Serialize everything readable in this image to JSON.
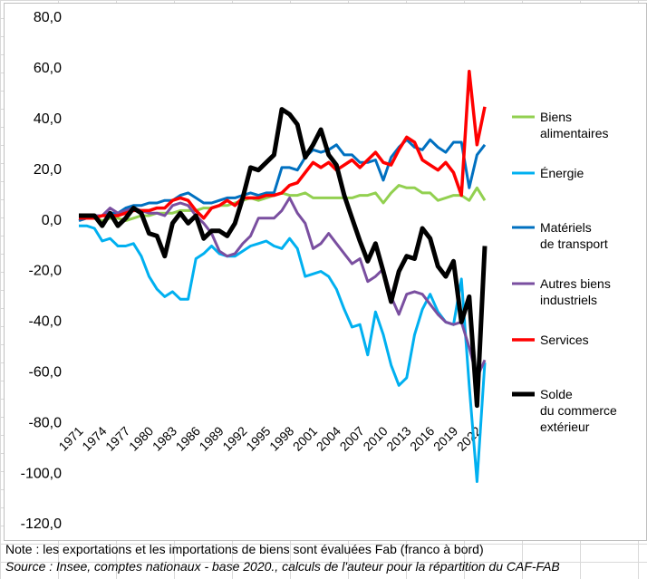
{
  "chart_data": {
    "type": "line",
    "categories": [
      "1971",
      null,
      null,
      "1974",
      null,
      null,
      "1977",
      null,
      null,
      "1980",
      null,
      null,
      "1983",
      null,
      null,
      "1986",
      null,
      null,
      "1989",
      null,
      null,
      "1992",
      null,
      null,
      "1995",
      null,
      null,
      "1998",
      null,
      null,
      "2001",
      null,
      null,
      "2004",
      null,
      null,
      "2007",
      null,
      null,
      "2010",
      null,
      null,
      "2013",
      null,
      null,
      "2016",
      null,
      null,
      "2019",
      null,
      null,
      "2022",
      null
    ],
    "series": [
      {
        "name": "Biens\nalimentaires",
        "color": "#92d050",
        "width": 3,
        "values": [
          1,
          1,
          1,
          0,
          1,
          1,
          0,
          1,
          2,
          2,
          3,
          3,
          3,
          4,
          4,
          4,
          5,
          5,
          6,
          6,
          7,
          8,
          9,
          8,
          9,
          10,
          11,
          10,
          10,
          11,
          9,
          9,
          9,
          9,
          9,
          9,
          10,
          10,
          11,
          7,
          11,
          14,
          13,
          13,
          11,
          11,
          8,
          9,
          10,
          10,
          8,
          13,
          8
        ]
      },
      {
        "name": "Énergie",
        "color": "#00b0f0",
        "width": 3,
        "values": [
          -2,
          -2,
          -3,
          -8,
          -7,
          -10,
          -10,
          -9,
          -14,
          -22,
          -27,
          -30,
          -28,
          -31,
          -31,
          -15,
          -13,
          -10,
          -13,
          -14,
          -14,
          -12,
          -10,
          -9,
          -8,
          -10,
          -11,
          -7,
          -11,
          -22,
          -21,
          -20,
          -22,
          -27,
          -35,
          -42,
          -41,
          -53,
          -36,
          -45,
          -57,
          -65,
          -62,
          -45,
          -35,
          -29,
          -36,
          -40,
          -41,
          -23,
          -65,
          -103,
          -56
        ]
      },
      {
        "name": "Matériels\nde transport",
        "color": "#0070c0",
        "width": 3,
        "values": [
          0,
          1,
          1,
          2,
          3,
          3,
          5,
          6,
          6,
          7,
          7,
          8,
          8,
          10,
          11,
          9,
          7,
          7,
          8,
          9,
          9,
          10,
          11,
          10,
          11,
          11,
          21,
          21,
          20,
          25,
          28,
          27,
          28,
          30,
          26,
          26,
          23,
          23,
          24,
          16,
          25,
          29,
          32,
          29,
          28,
          32,
          29,
          27,
          31,
          31,
          13,
          26,
          30
        ]
      },
      {
        "name": "Autres biens\nindustriels",
        "color": "#7a4fa0",
        "width": 3,
        "values": [
          1,
          1,
          2,
          2,
          5,
          3,
          4,
          5,
          4,
          3,
          3,
          2,
          6,
          7,
          6,
          2,
          -1,
          -5,
          -12,
          -14,
          -13,
          -9,
          -6,
          1,
          1,
          1,
          4,
          9,
          3,
          -1,
          -11,
          -9,
          -5,
          -9,
          -13,
          -17,
          -15,
          -24,
          -22,
          -19,
          -30,
          -37,
          -29,
          -28,
          -29,
          -33,
          -37,
          -40,
          -41,
          -40,
          -50,
          -62,
          -55
        ]
      },
      {
        "name": "Services",
        "color": "#ff0000",
        "width": 3.5,
        "values": [
          1,
          1,
          1,
          2,
          2,
          2,
          3,
          4,
          4,
          4,
          5,
          5,
          8,
          9,
          8,
          4,
          1,
          5,
          6,
          8,
          6,
          9,
          9,
          9,
          10,
          10,
          11,
          14,
          15,
          19,
          23,
          21,
          23,
          20,
          22,
          24,
          21,
          24,
          27,
          23,
          22,
          28,
          33,
          31,
          24,
          22,
          20,
          23,
          19,
          10,
          59,
          30,
          45
        ]
      },
      {
        "name": "Solde\ndu commerce\nextérieur",
        "color": "#000000",
        "width": 5,
        "values": [
          2,
          2,
          2,
          -2,
          3,
          -2,
          1,
          5,
          3,
          -5,
          -6,
          -14,
          -1,
          3,
          -1,
          2,
          -7,
          -4,
          -4,
          -6,
          -1,
          9,
          21,
          20,
          23,
          26,
          44,
          42,
          38,
          25,
          30,
          36,
          26,
          22,
          10,
          1,
          -8,
          -16,
          -9,
          -20,
          -32,
          -20,
          -14,
          -15,
          -3,
          -7,
          -18,
          -22,
          -16,
          -40,
          -30,
          -73,
          -10
        ]
      }
    ],
    "ylim": [
      -120,
      80
    ],
    "yticks": [
      {
        "value": 80,
        "label": "80,0"
      },
      {
        "value": 60,
        "label": "60,0"
      },
      {
        "value": 40,
        "label": "40,0"
      },
      {
        "value": 20,
        "label": "20,0"
      },
      {
        "value": 0,
        "label": "0,0"
      },
      {
        "value": -20,
        "label": "-20,0"
      },
      {
        "value": -40,
        "label": "-40,0"
      },
      {
        "value": -60,
        "label": "-60,0"
      },
      {
        "value": -80,
        "label": "-80,0"
      },
      {
        "value": -100,
        "label": "-100,0"
      },
      {
        "value": -120,
        "label": "-120,0"
      }
    ],
    "legend": "right",
    "note": "Note : les exportations et les importations de biens sont évaluées Fab (franco à bord)",
    "source": "Source : Insee, comptes nationaux - base 2020., calculs de l'auteur pour la répartition du CAF-FAB"
  }
}
